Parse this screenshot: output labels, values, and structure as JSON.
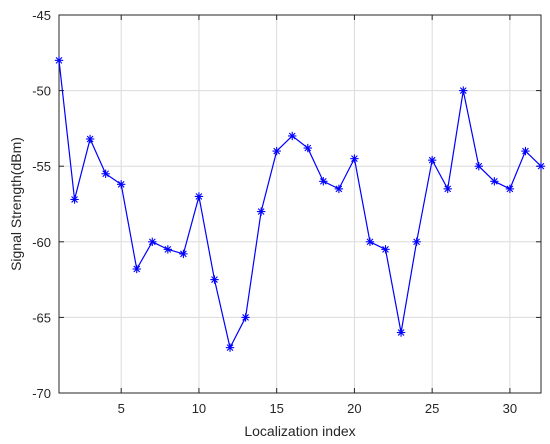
{
  "chart_data": {
    "type": "line",
    "xlabel": "Localization index",
    "ylabel": "Signal Strength(dBm)",
    "xlim": [
      1,
      32
    ],
    "ylim": [
      -70,
      -45
    ],
    "xticks": [
      5,
      10,
      15,
      20,
      25,
      30
    ],
    "yticks": [
      -70,
      -65,
      -60,
      -55,
      -50,
      -45
    ],
    "grid": true,
    "series": [
      {
        "color": "#0000ff",
        "marker": "asterisk",
        "x": [
          1,
          2,
          3,
          4,
          5,
          6,
          7,
          8,
          9,
          10,
          11,
          12,
          13,
          14,
          15,
          16,
          17,
          18,
          19,
          20,
          21,
          22,
          23,
          24,
          25,
          26,
          27,
          28,
          29,
          30,
          31,
          32
        ],
        "values": [
          -48,
          -57.2,
          -53.2,
          -55.5,
          -56.2,
          -61.8,
          -60,
          -60.5,
          -60.8,
          -57,
          -62.5,
          -67,
          -65,
          -58,
          -54,
          -53,
          -53.8,
          -56,
          -56.5,
          -54.5,
          -60,
          -60.5,
          -66,
          -60,
          -54.6,
          -56.5,
          -50,
          -55,
          -56,
          -56.5,
          -54,
          -55
        ]
      }
    ]
  }
}
